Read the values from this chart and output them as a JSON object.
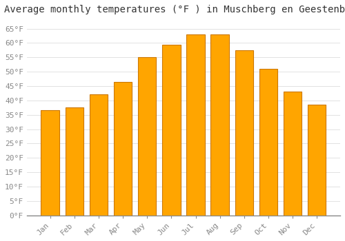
{
  "title": "Average monthly temperatures (°F ) in Muschberg en Geestenberg",
  "months": [
    "Jan",
    "Feb",
    "Mar",
    "Apr",
    "May",
    "Jun",
    "Jul",
    "Aug",
    "Sep",
    "Oct",
    "Nov",
    "Dec"
  ],
  "values": [
    36.5,
    37.5,
    42.0,
    46.5,
    55.0,
    59.5,
    63.0,
    63.0,
    57.5,
    51.0,
    43.0,
    38.5
  ],
  "bar_color": "#FFA500",
  "bar_edge_color": "#CC7700",
  "background_color": "#FFFFFF",
  "plot_bg_color": "#FFFFFF",
  "grid_color": "#DDDDDD",
  "ylim": [
    0,
    68
  ],
  "yticks": [
    0,
    5,
    10,
    15,
    20,
    25,
    30,
    35,
    40,
    45,
    50,
    55,
    60,
    65
  ],
  "ytick_labels": [
    "0°F",
    "5°F",
    "10°F",
    "15°F",
    "20°F",
    "25°F",
    "30°F",
    "35°F",
    "40°F",
    "45°F",
    "50°F",
    "55°F",
    "60°F",
    "65°F"
  ],
  "title_fontsize": 10,
  "tick_fontsize": 8,
  "tick_color": "#888888",
  "font_family": "monospace",
  "bar_width": 0.75
}
